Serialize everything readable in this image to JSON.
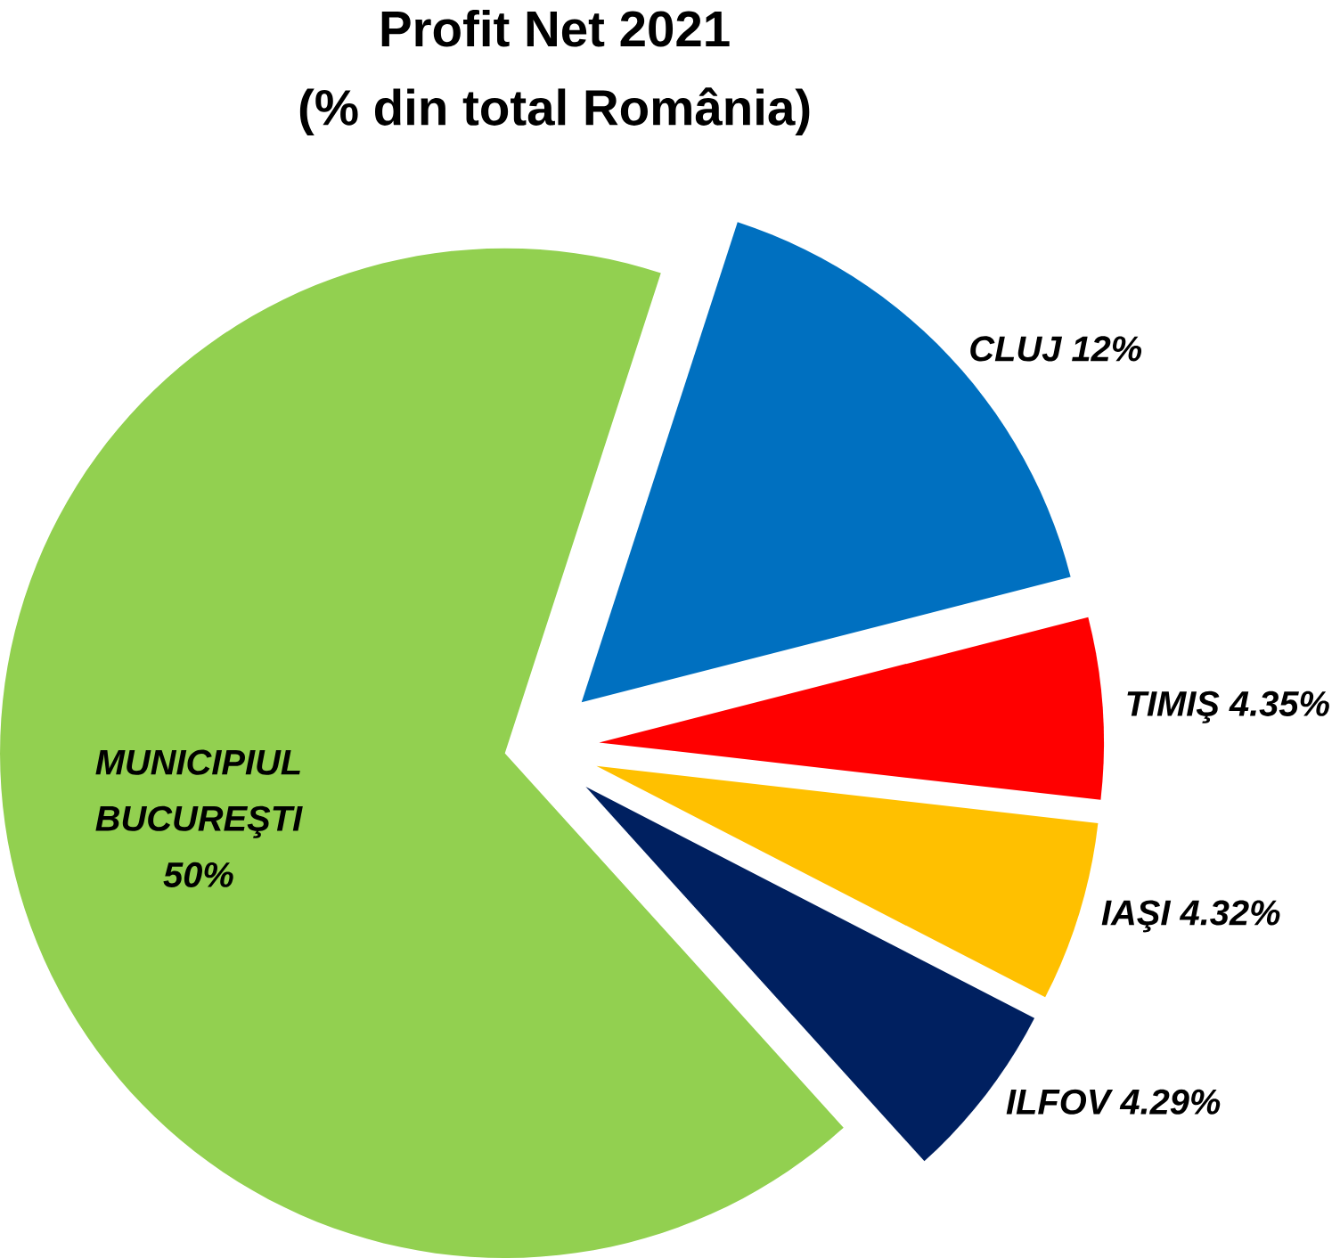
{
  "chart_data": {
    "type": "pie",
    "title": "Profit Net 2021",
    "subtitle": "(% din total România)",
    "categories": [
      "CLUJ",
      "TIMIŞ",
      "IAŞI",
      "ILFOV",
      "MUNICIPIUL BUCUREŞTI"
    ],
    "values": [
      12,
      4.35,
      4.32,
      4.29,
      50
    ],
    "value_labels": [
      "12%",
      "4.35%",
      "4.32%",
      "4.29%",
      "50%"
    ],
    "colors": [
      "#0070c0",
      "#ff0000",
      "#ffc000",
      "#002060",
      "#92d050"
    ]
  }
}
